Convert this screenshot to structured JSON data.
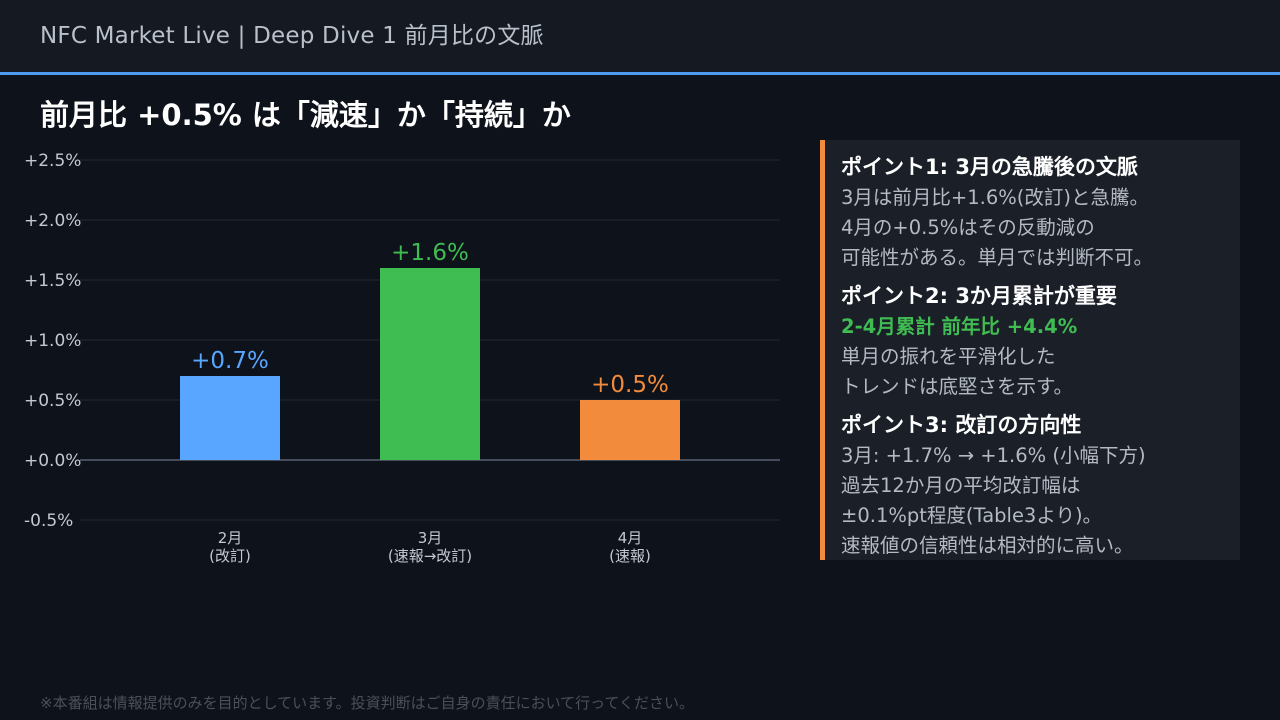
{
  "header": {
    "title": "NFC Market Live  |  Deep Dive 1  前月比の文脈"
  },
  "page_title": "前月比 +0.5% は「減速」か「持続」か",
  "colors": {
    "background": "#0e121a",
    "header_background": "#141922",
    "header_accent": "#4d9bf0",
    "panel_background": "#1a1f28",
    "panel_accent": "#f28c3c",
    "highlight_green": "#40bd52"
  },
  "chart_data": {
    "type": "bar",
    "categories": [
      [
        "2月",
        "(改訂)"
      ],
      [
        "3月",
        "(速報→改訂)"
      ],
      [
        "4月",
        "(速報)"
      ]
    ],
    "values": [
      0.7,
      1.6,
      0.5
    ],
    "value_labels": [
      "+0.7%",
      "+1.6%",
      "+0.5%"
    ],
    "bar_colors": [
      "#58a6ff",
      "#40bd52",
      "#f28c3c"
    ],
    "ylim": [
      -0.5,
      2.5
    ],
    "yticks": [
      2.5,
      2.0,
      1.5,
      1.0,
      0.5,
      0.0,
      -0.5
    ],
    "ytick_labels": [
      "+2.5%",
      "+2.0%",
      "+1.5%",
      "+1.0%",
      "+0.5%",
      "+0.0%",
      "-0.5%"
    ],
    "grid": true,
    "title": "",
    "xlabel": "",
    "ylabel": ""
  },
  "side_panel": {
    "points": [
      {
        "heading": "ポイント1: 3月の急騰後の文脈",
        "lines": [
          {
            "text": "3月は前月比+1.6%(改訂)と急騰。",
            "highlight": false
          },
          {
            "text": "4月の+0.5%はその反動減の",
            "highlight": false
          },
          {
            "text": "可能性がある。単月では判断不可。",
            "highlight": false
          }
        ]
      },
      {
        "heading": "ポイント2: 3か月累計が重要",
        "lines": [
          {
            "text": "2-4月累計 前年比 +4.4%",
            "highlight": true
          },
          {
            "text": "単月の振れを平滑化した",
            "highlight": false
          },
          {
            "text": "トレンドは底堅さを示す。",
            "highlight": false
          }
        ]
      },
      {
        "heading": "ポイント3: 改訂の方向性",
        "lines": [
          {
            "text": "3月: +1.7% → +1.6% (小幅下方)",
            "highlight": false
          },
          {
            "text": "過去12か月の平均改訂幅は",
            "highlight": false
          },
          {
            "text": "±0.1%pt程度(Table3より)。",
            "highlight": false
          },
          {
            "text": "速報値の信頼性は相対的に高い。",
            "highlight": false
          }
        ]
      }
    ]
  },
  "disclaimer": "※本番組は情報提供のみを目的としています。投資判断はご自身の責任において行ってください。"
}
